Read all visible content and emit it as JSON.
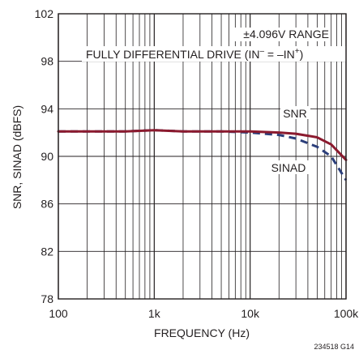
{
  "chart_data": {
    "type": "line",
    "title": "",
    "xlabel": "FREQUENCY (Hz)",
    "ylabel": "SNR, SINAD (dBFS)",
    "x_scale": "log",
    "xlim": [
      100,
      100000
    ],
    "ylim": [
      78,
      102
    ],
    "x_ticks": [
      {
        "value": 100,
        "label": "100"
      },
      {
        "value": 1000,
        "label": "1k"
      },
      {
        "value": 10000,
        "label": "10k"
      },
      {
        "value": 100000,
        "label": "100k"
      }
    ],
    "y_ticks": [
      {
        "value": 78,
        "label": "78"
      },
      {
        "value": 82,
        "label": "82"
      },
      {
        "value": 86,
        "label": "86"
      },
      {
        "value": 90,
        "label": "90"
      },
      {
        "value": 94,
        "label": "94"
      },
      {
        "value": 98,
        "label": "98"
      },
      {
        "value": 102,
        "label": "102"
      }
    ],
    "grid": true,
    "annotations": {
      "range": "±4.096V RANGE",
      "drive": "FULLY DIFFERENTIAL DRIVE (IN",
      "drive_sup1": "–",
      "drive_mid": " = –IN",
      "drive_sup2": "+",
      "drive_end": ")",
      "snr": "SNR",
      "sinad": "SINAD"
    },
    "figure_code": "234518 G14",
    "series": [
      {
        "name": "SNR",
        "color": "#8b1a2e",
        "dash": "solid",
        "x": [
          100,
          200,
          500,
          1000,
          2000,
          5000,
          10000,
          20000,
          30000,
          50000,
          70000,
          100000
        ],
        "y": [
          92.1,
          92.1,
          92.1,
          92.2,
          92.1,
          92.1,
          92.1,
          92.0,
          91.9,
          91.6,
          91.0,
          89.7
        ]
      },
      {
        "name": "SINAD",
        "color": "#2b3e7a",
        "dash": "dashed",
        "x": [
          100,
          200,
          500,
          1000,
          2000,
          5000,
          10000,
          20000,
          30000,
          50000,
          70000,
          100000
        ],
        "y": [
          92.1,
          92.1,
          92.1,
          92.2,
          92.1,
          92.1,
          92.0,
          91.8,
          91.5,
          90.8,
          90.0,
          88.0
        ]
      }
    ]
  }
}
